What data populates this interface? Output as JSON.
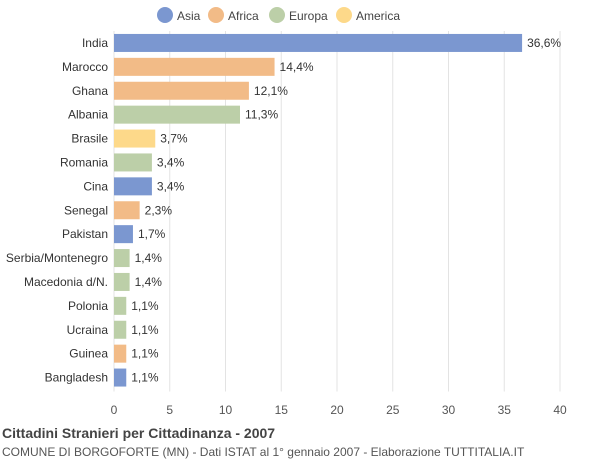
{
  "chart_data": {
    "type": "bar",
    "orientation": "horizontal",
    "legend": [
      {
        "name": "Asia",
        "color": "#7b97d0"
      },
      {
        "name": "Africa",
        "color": "#f2bb87"
      },
      {
        "name": "Europa",
        "color": "#bccfa8"
      },
      {
        "name": "America",
        "color": "#fdd98a"
      }
    ],
    "legend_position": "top-center",
    "categories": [
      "India",
      "Marocco",
      "Ghana",
      "Albania",
      "Brasile",
      "Romania",
      "Cina",
      "Senegal",
      "Pakistan",
      "Serbia/Montenegro",
      "Macedonia d/N.",
      "Polonia",
      "Ucraina",
      "Guinea",
      "Bangladesh"
    ],
    "values": [
      36.6,
      14.4,
      12.1,
      11.3,
      3.7,
      3.4,
      3.4,
      2.3,
      1.7,
      1.4,
      1.4,
      1.1,
      1.1,
      1.1,
      1.1
    ],
    "value_labels": [
      "36,6%",
      "14,4%",
      "12,1%",
      "11,3%",
      "3,7%",
      "3,4%",
      "3,4%",
      "2,3%",
      "1,7%",
      "1,4%",
      "1,4%",
      "1,1%",
      "1,1%",
      "1,1%",
      "1,1%"
    ],
    "continent": [
      "Asia",
      "Africa",
      "Africa",
      "Europa",
      "America",
      "Europa",
      "Asia",
      "Africa",
      "Asia",
      "Europa",
      "Europa",
      "Europa",
      "Europa",
      "Africa",
      "Asia"
    ],
    "xlim": [
      0,
      40
    ],
    "xticks": [
      0,
      5,
      10,
      15,
      20,
      25,
      30,
      35,
      40
    ],
    "grid": true
  },
  "caption": {
    "title": "Cittadini Stranieri per Cittadinanza - 2007",
    "subtitle": "COMUNE DI BORGOFORTE (MN) - Dati ISTAT al 1° gennaio 2007 - Elaborazione TUTTITALIA.IT"
  }
}
